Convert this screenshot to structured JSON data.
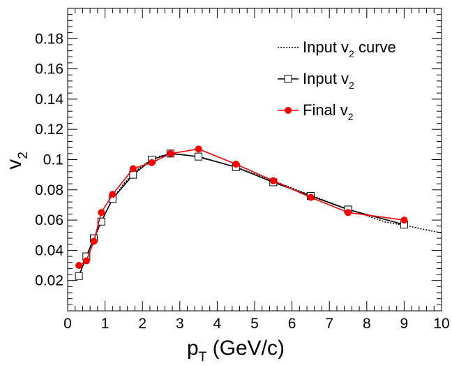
{
  "chart_data": {
    "type": "line",
    "xlabel": {
      "main": "p",
      "sub": "T",
      "rest": " (GeV/c)"
    },
    "ylabel": {
      "main": "v",
      "sub": "2"
    },
    "xlim": [
      0,
      10
    ],
    "ylim": [
      0,
      0.2
    ],
    "x_ticks": [
      0,
      1,
      2,
      3,
      4,
      5,
      6,
      7,
      8,
      9,
      10
    ],
    "x_tick_labels": [
      "0",
      "1",
      "2",
      "3",
      "4",
      "5",
      "6",
      "7",
      "8",
      "9",
      "10"
    ],
    "y_ticks": [
      0.02,
      0.04,
      0.06,
      0.08,
      0.1,
      0.12,
      0.14,
      0.16,
      0.18
    ],
    "y_tick_labels": [
      "0.02",
      "0.04",
      "0.06",
      "0.08",
      "0.1",
      "0.12",
      "0.14",
      "0.16",
      "0.18"
    ],
    "grid": false,
    "legend_position": "top-right",
    "series": [
      {
        "key": "curve",
        "legend_label": {
          "pre": "Input v",
          "sub": "2",
          "post": " curve"
        },
        "style": "dotted",
        "color": "#000000",
        "x": [
          0.3,
          0.5,
          0.7,
          0.9,
          1.2,
          1.5,
          1.75,
          2.0,
          2.25,
          2.5,
          2.75,
          3.0,
          3.25,
          3.5,
          4.0,
          4.5,
          5.0,
          5.5,
          6.0,
          6.5,
          7.0,
          7.5,
          8.0,
          8.5,
          9.0,
          9.5,
          10.0
        ],
        "y": [
          0.023,
          0.035,
          0.047,
          0.059,
          0.074,
          0.084,
          0.091,
          0.096,
          0.1,
          0.1025,
          0.1035,
          0.1035,
          0.1028,
          0.1015,
          0.0985,
          0.095,
          0.0905,
          0.086,
          0.0812,
          0.0765,
          0.0718,
          0.0673,
          0.0629,
          0.0587,
          0.0566,
          0.054,
          0.0515
        ]
      },
      {
        "key": "input",
        "legend_label": {
          "pre": "Input v",
          "sub": "2",
          "post": ""
        },
        "style": "solid",
        "marker": "open-square",
        "color": "#000000",
        "x": [
          0.3,
          0.5,
          0.7,
          0.9,
          1.2,
          1.75,
          2.25,
          2.75,
          3.5,
          4.5,
          5.5,
          6.5,
          7.5,
          9.0
        ],
        "y": [
          0.023,
          0.036,
          0.048,
          0.059,
          0.074,
          0.09,
          0.1,
          0.104,
          0.102,
          0.095,
          0.085,
          0.076,
          0.067,
          0.057
        ]
      },
      {
        "key": "final",
        "legend_label": {
          "pre": "Final v",
          "sub": "2",
          "post": ""
        },
        "style": "solid",
        "marker": "filled-circle",
        "color": "#ff0000",
        "x": [
          0.3,
          0.5,
          0.7,
          0.9,
          1.2,
          1.75,
          2.25,
          2.75,
          3.5,
          4.5,
          5.5,
          6.5,
          7.5,
          9.0
        ],
        "y": [
          0.03,
          0.033,
          0.046,
          0.065,
          0.077,
          0.094,
          0.098,
          0.104,
          0.107,
          0.097,
          0.086,
          0.075,
          0.065,
          0.06
        ],
        "y_err": [
          0.001,
          0.001,
          0.001,
          0.002,
          0.001,
          0.002,
          0.002,
          0.002,
          0.002,
          0.002,
          0.002,
          0.002,
          0.002,
          0.002
        ]
      }
    ]
  }
}
